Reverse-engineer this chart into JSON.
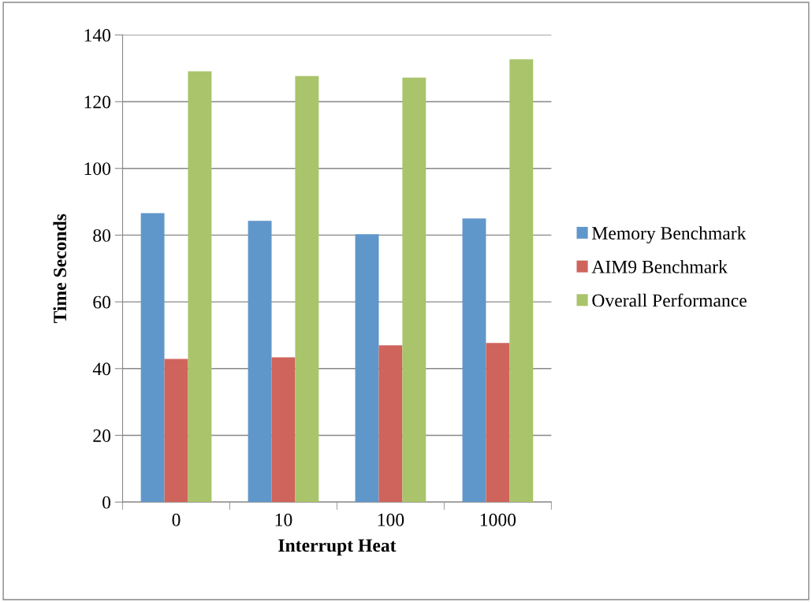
{
  "chart_data": {
    "type": "bar",
    "xlabel": "Interrupt Heat",
    "ylabel": "Time Seconds",
    "categories": [
      "0",
      "10",
      "100",
      "1000"
    ],
    "series": [
      {
        "name": "Memory Benchmark",
        "color": "#6097cb",
        "values": [
          86.6,
          84.3,
          80.3,
          85.0
        ]
      },
      {
        "name": "AIM9 Benchmark",
        "color": "#cf645c",
        "values": [
          42.9,
          43.4,
          47.0,
          47.7
        ]
      },
      {
        "name": "Overall Performance",
        "color": "#a9c46a",
        "values": [
          129.1,
          127.7,
          127.2,
          132.7
        ]
      }
    ],
    "ylim": [
      0,
      140
    ],
    "yticks": [
      0,
      20,
      40,
      60,
      80,
      100,
      120,
      140
    ],
    "grid": "y",
    "legend": "right"
  }
}
